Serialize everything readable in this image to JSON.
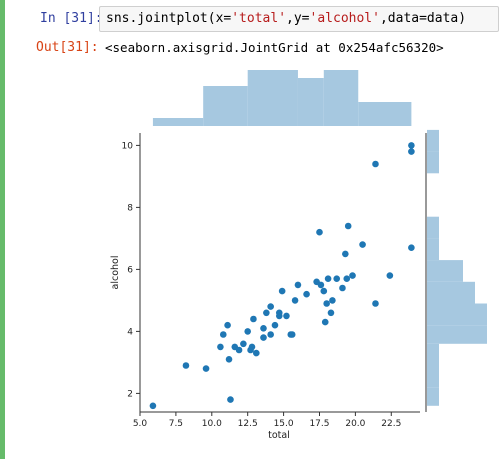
{
  "notebook": {
    "in_prompt": "In [31]:",
    "code_parts": [
      {
        "text": "sns.jointplot(x=",
        "color": "#000000"
      },
      {
        "text": "'total'",
        "color": "#b71c1c"
      },
      {
        "text": ",y=",
        "color": "#000000"
      },
      {
        "text": "'alcohol'",
        "color": "#b71c1c"
      },
      {
        "text": ",data=data)",
        "color": "#000000"
      }
    ],
    "out_prompt": "Out[31]:",
    "output_text": "<seaborn.axisgrid.JointGrid at 0x254afc56320>"
  },
  "chart_data": {
    "type": "scatter",
    "xlabel": "total",
    "ylabel": "alcohol",
    "xlim": [
      5.0,
      24.5
    ],
    "ylim": [
      1.4,
      10.4
    ],
    "xticks": [
      5.0,
      7.5,
      10.0,
      12.5,
      15.0,
      17.5,
      20.0,
      22.5
    ],
    "xtick_labels": [
      "5.0",
      "7.5",
      "10.0",
      "12.5",
      "15.0",
      "17.5",
      "20.0",
      "22.5"
    ],
    "yticks": [
      2,
      4,
      6,
      8,
      10
    ],
    "ytick_labels": [
      "2",
      "4",
      "6",
      "8",
      "10"
    ],
    "point_color": "#1f77b4",
    "hist_color": "#a6c8e0",
    "points": [
      [
        5.9,
        1.6
      ],
      [
        8.2,
        2.9
      ],
      [
        9.6,
        2.8
      ],
      [
        10.6,
        3.5
      ],
      [
        10.8,
        3.9
      ],
      [
        11.1,
        4.2
      ],
      [
        11.2,
        3.1
      ],
      [
        11.3,
        1.8
      ],
      [
        11.6,
        3.5
      ],
      [
        11.9,
        3.4
      ],
      [
        12.2,
        3.6
      ],
      [
        12.5,
        4.0
      ],
      [
        12.7,
        3.4
      ],
      [
        12.8,
        3.5
      ],
      [
        12.9,
        4.4
      ],
      [
        13.1,
        3.3
      ],
      [
        13.6,
        3.8
      ],
      [
        13.6,
        4.1
      ],
      [
        13.8,
        4.6
      ],
      [
        14.1,
        3.9
      ],
      [
        14.1,
        4.8
      ],
      [
        14.4,
        4.2
      ],
      [
        14.7,
        4.5
      ],
      [
        14.7,
        4.6
      ],
      [
        14.9,
        5.3
      ],
      [
        15.2,
        4.5
      ],
      [
        15.5,
        3.9
      ],
      [
        15.6,
        3.9
      ],
      [
        15.8,
        5.0
      ],
      [
        16.0,
        5.5
      ],
      [
        16.6,
        5.2
      ],
      [
        17.3,
        5.6
      ],
      [
        17.5,
        7.2
      ],
      [
        17.6,
        5.5
      ],
      [
        17.8,
        5.3
      ],
      [
        17.9,
        4.3
      ],
      [
        18.0,
        4.9
      ],
      [
        18.1,
        5.7
      ],
      [
        18.3,
        4.6
      ],
      [
        18.4,
        5.0
      ],
      [
        18.7,
        5.7
      ],
      [
        19.1,
        5.4
      ],
      [
        19.3,
        6.5
      ],
      [
        19.4,
        5.7
      ],
      [
        19.5,
        7.4
      ],
      [
        19.8,
        5.8
      ],
      [
        20.5,
        6.8
      ],
      [
        21.4,
        9.4
      ],
      [
        21.4,
        4.9
      ],
      [
        22.4,
        5.8
      ],
      [
        23.9,
        10.0
      ],
      [
        23.9,
        9.8
      ],
      [
        23.9,
        6.7
      ]
    ],
    "top_hist": [
      {
        "from": 5.9,
        "to": 9.4,
        "count": 1
      },
      {
        "from": 9.4,
        "to": 12.5,
        "count": 5
      },
      {
        "from": 12.5,
        "to": 16.0,
        "count": 7
      },
      {
        "from": 16.0,
        "to": 17.8,
        "count": 6
      },
      {
        "from": 17.8,
        "to": 20.2,
        "count": 7
      },
      {
        "from": 20.2,
        "to": 23.9,
        "count": 3
      }
    ],
    "right_hist": [
      {
        "from": 1.6,
        "to": 2.2,
        "count": 1
      },
      {
        "from": 2.2,
        "to": 2.9,
        "count": 1
      },
      {
        "from": 2.9,
        "to": 3.6,
        "count": 1
      },
      {
        "from": 3.6,
        "to": 4.2,
        "count": 5
      },
      {
        "from": 4.2,
        "to": 4.9,
        "count": 5
      },
      {
        "from": 4.9,
        "to": 5.6,
        "count": 4
      },
      {
        "from": 5.6,
        "to": 6.3,
        "count": 3
      },
      {
        "from": 6.3,
        "to": 7.0,
        "count": 1
      },
      {
        "from": 7.0,
        "to": 7.7,
        "count": 1
      },
      {
        "from": 9.1,
        "to": 9.8,
        "count": 1
      },
      {
        "from": 9.8,
        "to": 10.5,
        "count": 1
      }
    ]
  }
}
